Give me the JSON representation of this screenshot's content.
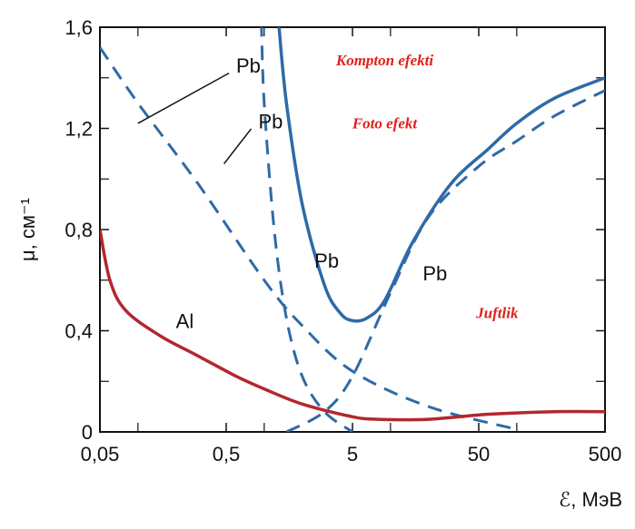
{
  "chart_data": {
    "type": "line",
    "title": "",
    "xlabel": "ℰ, МэВ",
    "ylabel": "μ, см⁻¹",
    "x_scale": "log",
    "xlim": [
      0.05,
      500
    ],
    "ylim": [
      0,
      1.6
    ],
    "x_tick_labels": [
      "0,05",
      "0,5",
      "5",
      "50",
      "500"
    ],
    "x_tick_values": [
      0.05,
      0.5,
      5,
      50,
      500
    ],
    "y_tick_labels": [
      "0",
      "0,4",
      "0,8",
      "1,2",
      "1,6"
    ],
    "y_tick_values": [
      0,
      0.4,
      0.8,
      1.2,
      1.6
    ],
    "grid": false,
    "colors": {
      "pb": "#2e6aa7",
      "al": "#b2282e",
      "annotation": "#e0201b"
    },
    "series": [
      {
        "name": "Pb",
        "style": "solid",
        "points": [
          [
            1.3,
            1.62
          ],
          [
            1.5,
            1.3
          ],
          [
            2.0,
            0.9
          ],
          [
            3.0,
            0.58
          ],
          [
            4.0,
            0.47
          ],
          [
            5.0,
            0.44
          ],
          [
            6.5,
            0.45
          ],
          [
            9.0,
            0.52
          ],
          [
            15,
            0.75
          ],
          [
            30,
            0.98
          ],
          [
            60,
            1.12
          ],
          [
            100,
            1.22
          ],
          [
            200,
            1.32
          ],
          [
            500,
            1.4
          ]
        ]
      },
      {
        "name": "Pb",
        "style": "dashed",
        "points": [
          [
            0.05,
            1.52
          ],
          [
            0.1,
            1.3
          ],
          [
            0.3,
            0.98
          ],
          [
            1.0,
            0.6
          ],
          [
            2.0,
            0.42
          ],
          [
            5.0,
            0.24
          ],
          [
            20,
            0.1
          ],
          [
            100,
            0.01
          ]
        ]
      },
      {
        "name": "Pb",
        "style": "dashed",
        "points": [
          [
            0.95,
            1.62
          ],
          [
            1.0,
            1.3
          ],
          [
            1.2,
            0.8
          ],
          [
            1.5,
            0.45
          ],
          [
            2.0,
            0.22
          ],
          [
            3.0,
            0.08
          ],
          [
            5.0,
            0.0
          ]
        ]
      },
      {
        "name": "Pb",
        "style": "dashed",
        "points": [
          [
            1.5,
            0.0
          ],
          [
            3.0,
            0.08
          ],
          [
            5.0,
            0.22
          ],
          [
            10,
            0.55
          ],
          [
            20,
            0.85
          ],
          [
            50,
            1.05
          ],
          [
            100,
            1.15
          ],
          [
            200,
            1.25
          ],
          [
            500,
            1.35
          ]
        ]
      },
      {
        "name": "Al",
        "style": "solid",
        "points": [
          [
            0.05,
            0.8
          ],
          [
            0.06,
            0.6
          ],
          [
            0.08,
            0.48
          ],
          [
            0.15,
            0.38
          ],
          [
            0.3,
            0.3
          ],
          [
            0.6,
            0.22
          ],
          [
            1.0,
            0.17
          ],
          [
            2.0,
            0.11
          ],
          [
            5.0,
            0.06
          ],
          [
            8.0,
            0.05
          ],
          [
            20,
            0.05
          ],
          [
            60,
            0.07
          ],
          [
            200,
            0.08
          ],
          [
            500,
            0.08
          ]
        ]
      }
    ],
    "curve_labels": [
      {
        "text": "Pb",
        "x": 0.6,
        "y": 1.42
      },
      {
        "text": "Pb",
        "x": 0.9,
        "y": 1.2
      },
      {
        "text": "Pb",
        "x": 2.5,
        "y": 0.65
      },
      {
        "text": "Pb",
        "x": 18,
        "y": 0.6
      },
      {
        "text": "Al",
        "x": 0.2,
        "y": 0.41
      }
    ],
    "leaders": [
      {
        "from": [
          0.6,
          1.44
        ],
        "to": [
          0.1,
          1.22
        ]
      },
      {
        "from": [
          0.9,
          1.22
        ],
        "to": [
          0.48,
          1.06
        ]
      }
    ],
    "annotations": [
      {
        "text": "Kompton efekti",
        "x": 9,
        "y": 1.45
      },
      {
        "text": "Foto efekt",
        "x": 9,
        "y": 1.2
      },
      {
        "text": "Juftlik",
        "x": 70,
        "y": 0.45
      }
    ]
  }
}
